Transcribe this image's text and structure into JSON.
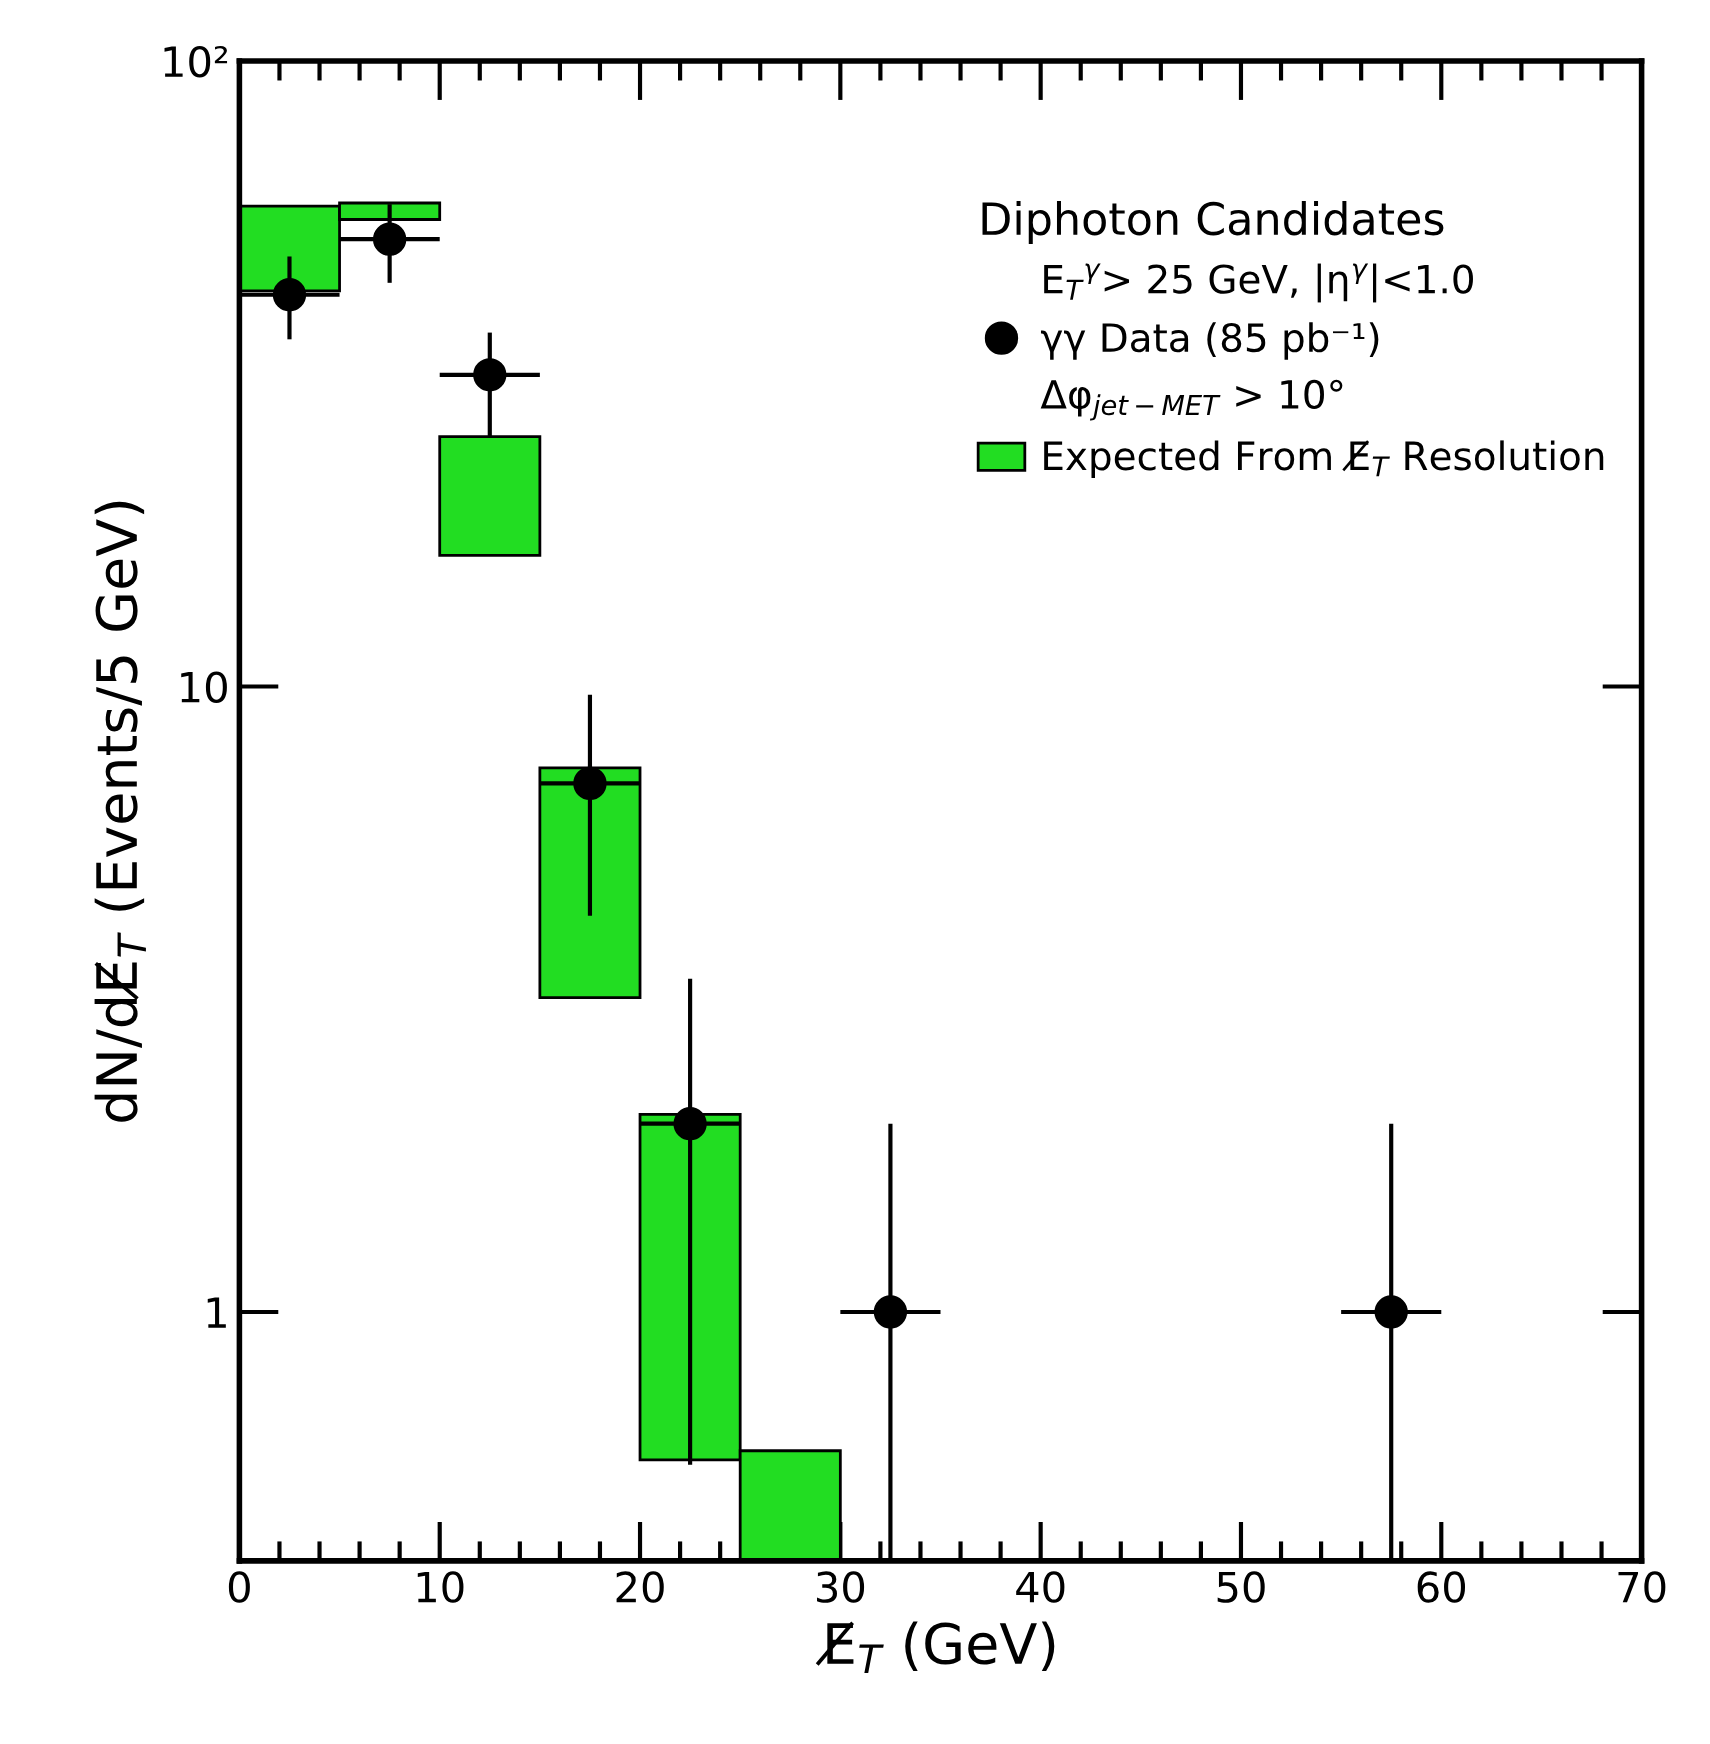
{
  "chart_data": {
    "type": "bar",
    "xlabel": "E̸$_{T}$ (GeV)",
    "ylabel": "dN/dE̸$_{T}$ (Events/5 GeV)",
    "legend_title": "Diphoton Candidates",
    "annotations": [
      "E$_{T}$$^{γ}$> 25 GeV, |η$^{γ}$|<1.0",
      "Δφ$_{jet−MET}$ > 10°"
    ],
    "series": [
      {
        "name": "Expected From E̸$_{T}$ Resolution",
        "color": "#22dd22",
        "x": [
          2.5,
          7.5,
          12.5,
          17.5,
          22.5,
          27.5
        ],
        "base": [
          42.9,
          55.8,
          16.2,
          3.18,
          0.58,
          0.4
        ],
        "values": [
          15.7,
          3.5,
          8.9,
          4.23,
          1.49,
          0.2
        ]
      },
      {
        "type": "scatter",
        "name": "γγ Data (85 pb⁻¹)",
        "color": "#000000",
        "marker": "circle",
        "x": [
          2.5,
          7.5,
          12.5,
          17.5,
          22.5,
          32.5,
          57.5
        ],
        "values": [
          42.3,
          51.9,
          31.5,
          7.0,
          2.0,
          1.0,
          1.0
        ],
        "errors": [
          [
            35.9,
            48.7
          ],
          [
            44.2,
            59.0
          ],
          [
            25.1,
            36.8
          ],
          [
            4.3,
            9.7
          ],
          [
            0.57,
            3.41
          ],
          [
            0.4,
            2.0
          ],
          [
            0.4,
            2.0
          ]
        ],
        "xerrors": [
          2.5,
          2.5,
          2.5,
          2.5,
          2.5,
          2.5,
          2.5
        ]
      }
    ],
    "log": "y",
    "xlim": [
      0,
      70
    ],
    "ylim": [
      0.4,
      100
    ],
    "xticks": [
      0,
      10,
      20,
      30,
      40,
      50,
      60,
      70
    ],
    "yticks": [
      1,
      10,
      {
        "value": 100,
        "label": "10²"
      }
    ],
    "grid": false,
    "legend": "top right"
  }
}
